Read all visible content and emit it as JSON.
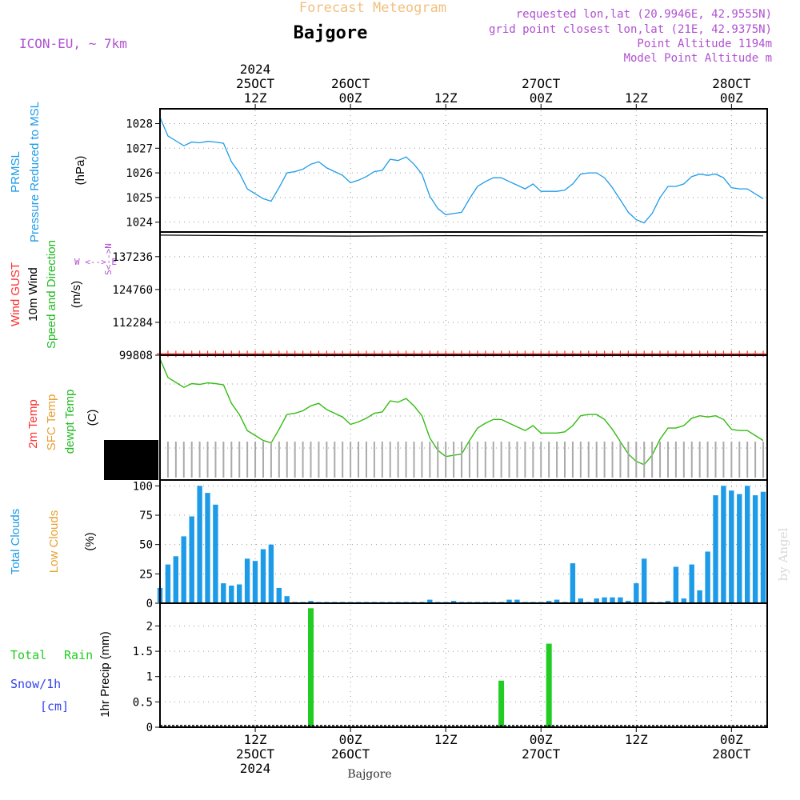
{
  "header": {
    "title_faded": "Forecast Meteogram",
    "location": "Bajgore",
    "model": "ICON-EU, ~ 7km",
    "requested": "requested lon,lat (20.9946E, 42.9555N)",
    "grid_point": "grid point closest lon,lat (21E, 42.9375N)",
    "point_alt": "Point Altitude 1194m",
    "model_alt": "Model Point Altitude m",
    "credit": "by Angel",
    "footer": "Bajgore"
  },
  "colors": {
    "pressure": "#1e9be8",
    "gust": "#ff3030",
    "wind": "#000000",
    "direction": "#22bb22",
    "temp2m": "#ff3030",
    "sfc": "#e8a030",
    "dewpt": "#33bb11",
    "clouds_total": "#1e9be8",
    "clouds_low": "#e8a030",
    "rain": "#22cc22",
    "snow": "#3344ee",
    "model": "#b050d0",
    "labels": "#b050d0",
    "title_faded": "#f0c080"
  },
  "top_axis": [
    {
      "line1": "2024",
      "line2": "25OCT",
      "line3": "12Z",
      "t": 12
    },
    {
      "line1": "",
      "line2": "26OCT",
      "line3": "00Z",
      "t": 24
    },
    {
      "line1": "",
      "line2": "",
      "line3": "12Z",
      "t": 36
    },
    {
      "line1": "",
      "line2": "27OCT",
      "line3": "00Z",
      "t": 48
    },
    {
      "line1": "",
      "line2": "",
      "line3": "12Z",
      "t": 60
    },
    {
      "line1": "",
      "line2": "28OCT",
      "line3": "00Z",
      "t": 72
    }
  ],
  "bottom_axis": [
    {
      "line1": "12Z",
      "line2": "25OCT",
      "line3": "2024",
      "t": 12
    },
    {
      "line1": "00Z",
      "line2": "26OCT",
      "line3": "",
      "t": 24
    },
    {
      "line1": "12Z",
      "line2": "",
      "line3": "",
      "t": 36
    },
    {
      "line1": "00Z",
      "line2": "27OCT",
      "line3": "",
      "t": 48
    },
    {
      "line1": "12Z",
      "line2": "",
      "line3": "",
      "t": 60
    },
    {
      "line1": "00Z",
      "line2": "28OCT",
      "line3": "",
      "t": 72
    }
  ],
  "time_range": [
    0,
    76.5
  ],
  "panels": {
    "pressure": {
      "label_a": "PRMSL",
      "label_b": "Pressure Reduced to MSL",
      "unit": "(hPa)",
      "ticks": [
        "1028",
        "1027",
        "1026",
        "1025",
        "1024"
      ],
      "tick_values": [
        1028,
        1027,
        1026,
        1025,
        1024
      ],
      "ylim": [
        1023.6,
        1028.6
      ]
    },
    "wind": {
      "label_gust": "Wind GUST",
      "label_wind": "10m Wind",
      "label_dir": "Speed and Direction",
      "unit": "(m/s)",
      "compass": "W <--> E",
      "compass2": "S<-->N",
      "ticks": [
        "137236",
        "124760",
        "112284",
        "99808"
      ],
      "tick_values": [
        137236,
        124760,
        112284,
        99808
      ],
      "ylim": [
        99808,
        146600
      ]
    },
    "temp": {
      "label_t2m": "2m Temp",
      "label_sfc": "SFC Temp",
      "label_dew": "dewpt Temp",
      "unit": "(C)"
    },
    "clouds": {
      "label_total": "Total Clouds",
      "label_low": "Low Clouds",
      "unit": "(%)",
      "ticks": [
        "100",
        "75",
        "50",
        "25",
        "0"
      ],
      "tick_values": [
        100,
        75,
        50,
        25,
        0
      ],
      "ylim": [
        0,
        105
      ]
    },
    "precip": {
      "label_total": "Total",
      "label_rain": "Rain",
      "label_snow": "Snow/1h",
      "label_cm": "[cm]",
      "unit": "1hr Precip (mm)",
      "ticks": [
        "2",
        "1.5",
        "1",
        "0.5",
        "0"
      ],
      "tick_values": [
        2,
        1.5,
        1,
        0.5,
        0
      ],
      "ylim": [
        0,
        2.45
      ]
    }
  },
  "chart_data": [
    {
      "type": "line",
      "title": "PRMSL Pressure Reduced to MSL",
      "ylabel": "hPa",
      "x": [
        0,
        1,
        2,
        3,
        4,
        5,
        6,
        7,
        8,
        9,
        10,
        11,
        12,
        13,
        14,
        15,
        16,
        17,
        18,
        19,
        20,
        21,
        22,
        23,
        24,
        25,
        26,
        27,
        28,
        29,
        30,
        31,
        32,
        33,
        34,
        35,
        36,
        37,
        38,
        39,
        40,
        41,
        42,
        43,
        44,
        45,
        46,
        47,
        48,
        49,
        50,
        51,
        52,
        53,
        54,
        55,
        56,
        57,
        58,
        59,
        60,
        61,
        62,
        63,
        64,
        65,
        66,
        67,
        68,
        69,
        70,
        71,
        72,
        73,
        74,
        75,
        76
      ],
      "values": [
        1028.25,
        1027.5,
        1027.3,
        1027.1,
        1027.25,
        1027.22,
        1027.28,
        1027.25,
        1027.2,
        1026.45,
        1026.0,
        1025.35,
        1025.15,
        1024.95,
        1024.85,
        1025.4,
        1026.0,
        1026.05,
        1026.15,
        1026.35,
        1026.45,
        1026.2,
        1026.05,
        1025.9,
        1025.6,
        1025.7,
        1025.85,
        1026.05,
        1026.1,
        1026.55,
        1026.5,
        1026.65,
        1026.35,
        1025.95,
        1025.05,
        1024.55,
        1024.3,
        1024.35,
        1024.4,
        1024.95,
        1025.45,
        1025.65,
        1025.8,
        1025.8,
        1025.65,
        1025.5,
        1025.35,
        1025.55,
        1025.25,
        1025.25,
        1025.25,
        1025.3,
        1025.55,
        1025.95,
        1026.0,
        1026.0,
        1025.8,
        1025.4,
        1024.9,
        1024.4,
        1024.1,
        1023.97,
        1024.35,
        1025.0,
        1025.45,
        1025.45,
        1025.55,
        1025.85,
        1025.95,
        1025.9,
        1025.95,
        1025.8,
        1025.4,
        1025.35,
        1025.35,
        1025.15,
        1024.95
      ]
    },
    {
      "type": "line",
      "title": "10m Wind Speed and Direction / Wind GUST",
      "ylabel": "m/s",
      "series": [
        {
          "name": "10m Wind",
          "x": [
            0,
            12,
            24,
            36,
            48,
            60,
            72,
            76
          ],
          "values": [
            145400,
            145200,
            145050,
            145200,
            145150,
            145200,
            145250,
            145150
          ]
        },
        {
          "name": "Wind GUST",
          "x": [
            0,
            76
          ],
          "values": [
            100300,
            100300
          ]
        }
      ]
    },
    {
      "type": "line",
      "title": "2m Temp / SFC Temp / dewpt Temp",
      "ylabel": "C",
      "x": [
        0,
        1,
        2,
        3,
        4,
        5,
        6,
        7,
        8,
        9,
        10,
        11,
        12,
        13,
        14,
        15,
        16,
        17,
        18,
        19,
        20,
        21,
        22,
        23,
        24,
        25,
        26,
        27,
        28,
        29,
        30,
        31,
        32,
        33,
        34,
        35,
        36,
        37,
        38,
        39,
        40,
        41,
        42,
        43,
        44,
        45,
        46,
        47,
        48,
        49,
        50,
        51,
        52,
        53,
        54,
        55,
        56,
        57,
        58,
        59,
        60,
        61,
        62,
        63,
        64,
        65,
        66,
        67,
        68,
        69,
        70,
        71,
        72,
        73,
        74,
        75,
        76
      ],
      "values": [
        1028.25,
        1027.5,
        1027.3,
        1027.1,
        1027.25,
        1027.22,
        1027.28,
        1027.25,
        1027.2,
        1026.45,
        1026.0,
        1025.35,
        1025.15,
        1024.95,
        1024.85,
        1025.4,
        1026.0,
        1026.05,
        1026.15,
        1026.35,
        1026.45,
        1026.2,
        1026.05,
        1025.9,
        1025.6,
        1025.7,
        1025.85,
        1026.05,
        1026.1,
        1026.55,
        1026.5,
        1026.65,
        1026.35,
        1025.95,
        1025.05,
        1024.55,
        1024.3,
        1024.35,
        1024.4,
        1024.95,
        1025.45,
        1025.65,
        1025.8,
        1025.8,
        1025.65,
        1025.5,
        1025.35,
        1025.55,
        1025.25,
        1025.25,
        1025.25,
        1025.3,
        1025.55,
        1025.95,
        1026.0,
        1026.0,
        1025.8,
        1025.4,
        1024.9,
        1024.4,
        1024.1,
        1023.97,
        1024.35,
        1025.0,
        1025.45,
        1025.45,
        1025.55,
        1025.85,
        1025.95,
        1025.9,
        1025.95,
        1025.8,
        1025.4,
        1025.35,
        1025.35,
        1025.15,
        1024.95
      ]
    },
    {
      "type": "bar",
      "title": "Total Clouds",
      "ylabel": "%",
      "ylim": [
        0,
        100
      ],
      "x": [
        0,
        1,
        2,
        3,
        4,
        5,
        6,
        7,
        8,
        9,
        10,
        11,
        12,
        13,
        14,
        15,
        16,
        17,
        18,
        19,
        20,
        21,
        22,
        23,
        24,
        25,
        26,
        27,
        28,
        29,
        30,
        31,
        32,
        33,
        34,
        35,
        36,
        37,
        38,
        39,
        40,
        41,
        42,
        43,
        44,
        45,
        46,
        47,
        48,
        49,
        50,
        51,
        52,
        53,
        54,
        55,
        56,
        57,
        58,
        59,
        60,
        61,
        62,
        63,
        64,
        65,
        66,
        67,
        68,
        69,
        70,
        71,
        72,
        73,
        74,
        75,
        76
      ],
      "values": [
        13,
        33,
        40,
        57,
        74,
        100,
        94,
        84,
        17,
        15,
        16,
        38,
        36,
        46,
        50,
        13,
        6,
        1,
        1,
        2,
        1,
        1,
        1,
        1,
        1,
        1,
        1,
        1,
        1,
        1,
        1,
        1,
        1,
        1,
        3,
        1,
        1,
        2,
        1,
        1,
        1,
        1,
        1,
        1,
        3,
        3,
        1,
        1,
        1,
        2,
        3,
        1,
        34,
        4,
        1,
        4,
        5,
        5,
        5,
        2,
        17,
        38,
        1,
        1,
        2,
        31,
        4,
        33,
        11,
        44,
        92,
        100,
        96,
        93,
        100,
        92,
        95
      ]
    },
    {
      "type": "bar",
      "title": "1hr Precip (Total Rain)",
      "ylabel": "mm",
      "ylim": [
        0,
        2.45
      ],
      "x": [
        19,
        43,
        49
      ],
      "values": [
        2.35,
        0.92,
        1.65
      ]
    }
  ]
}
